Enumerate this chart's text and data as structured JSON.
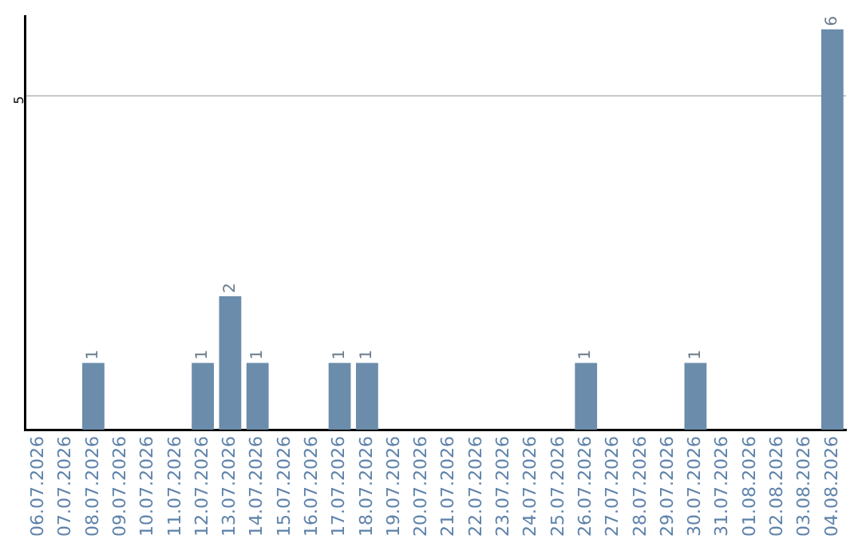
{
  "chart_data": {
    "type": "bar",
    "categories": [
      "06.07.2026",
      "07.07.2026",
      "08.07.2026",
      "09.07.2026",
      "10.07.2026",
      "11.07.2026",
      "12.07.2026",
      "13.07.2026",
      "14.07.2026",
      "15.07.2026",
      "16.07.2026",
      "17.07.2026",
      "18.07.2026",
      "19.07.2026",
      "20.07.2026",
      "21.07.2026",
      "22.07.2026",
      "23.07.2026",
      "24.07.2026",
      "25.07.2026",
      "26.07.2026",
      "27.07.2026",
      "28.07.2026",
      "29.07.2026",
      "30.07.2026",
      "31.07.2026",
      "01.08.2026",
      "02.08.2026",
      "03.08.2026",
      "04.08.2026"
    ],
    "values": [
      0,
      0,
      1,
      0,
      0,
      0,
      1,
      2,
      1,
      0,
      0,
      1,
      1,
      0,
      0,
      0,
      0,
      0,
      0,
      0,
      1,
      0,
      0,
      0,
      1,
      0,
      0,
      0,
      0,
      6
    ],
    "value_labels": [
      null,
      null,
      "1",
      null,
      null,
      null,
      "1",
      "2",
      "1",
      null,
      null,
      "1",
      "1",
      null,
      null,
      null,
      null,
      null,
      null,
      null,
      "1",
      null,
      null,
      null,
      "1",
      null,
      null,
      null,
      null,
      "6"
    ],
    "color": "#6b8cab",
    "ylim": [
      0,
      6.2
    ],
    "yticks": [
      5
    ],
    "grid": "y",
    "legend": false
  }
}
